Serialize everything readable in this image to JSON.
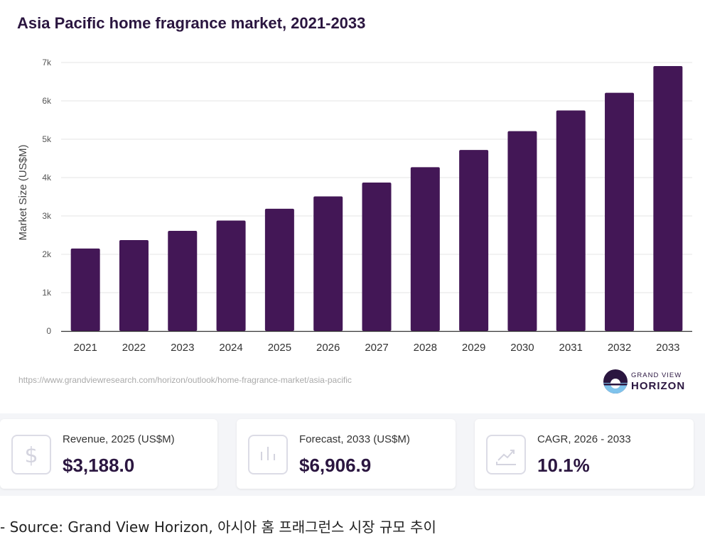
{
  "chart_data": {
    "type": "bar",
    "title": "Asia Pacific home fragrance market, 2021-2033",
    "ylabel": "Market Size (US$M)",
    "xlabel": "",
    "ylim": [
      0,
      7000
    ],
    "yticks": [
      0,
      1000,
      2000,
      3000,
      4000,
      5000,
      6000,
      7000
    ],
    "ytick_labels": [
      "0",
      "1k",
      "2k",
      "3k",
      "4k",
      "5k",
      "6k",
      "7k"
    ],
    "categories": [
      "2021",
      "2022",
      "2023",
      "2024",
      "2025",
      "2026",
      "2027",
      "2028",
      "2029",
      "2030",
      "2031",
      "2032",
      "2033"
    ],
    "values": [
      2150,
      2370,
      2610,
      2880,
      3188,
      3510,
      3870,
      4270,
      4720,
      5210,
      5750,
      6210,
      6906.9
    ],
    "bar_color": "#431756",
    "grid": true,
    "legend": "none"
  },
  "source_url": "https://www.grandviewresearch.com/horizon/outlook/home-fragrance-market/asia-pacific",
  "brand": {
    "line1": "GRAND VIEW",
    "line2": "HORIZON",
    "logo_icon": "horizon-logo-icon"
  },
  "stats": [
    {
      "label": "Revenue, 2025 (US$M)",
      "value": "$3,188.0",
      "icon": "dollar-icon"
    },
    {
      "label": "Forecast, 2033 (US$M)",
      "value": "$6,906.9",
      "icon": "bar-chart-icon"
    },
    {
      "label": "CAGR, 2026 - 2033",
      "value": "10.1%",
      "icon": "trend-up-icon"
    }
  ],
  "footer_note": "- Source: Grand View Horizon, 아시아 홈 프래그런스 시장 규모 추이"
}
